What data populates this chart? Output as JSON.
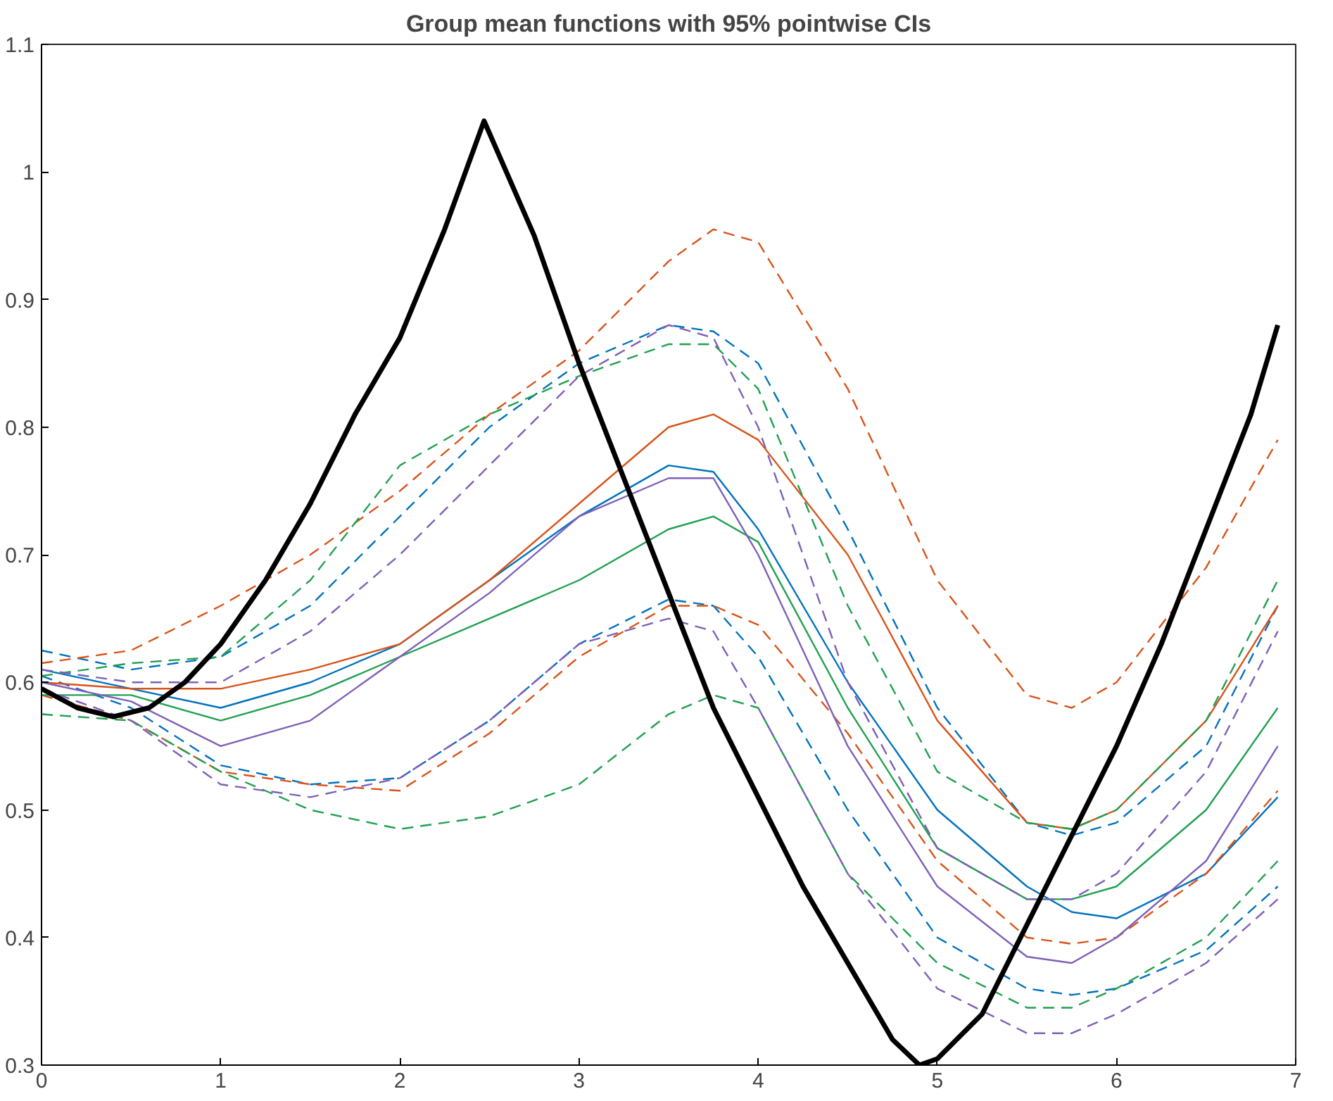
{
  "chart_data": {
    "type": "line",
    "title": "Group mean functions with 95% pointwise CIs",
    "x": [
      0,
      0.5,
      1,
      1.5,
      2,
      2.5,
      3,
      3.5,
      3.75,
      4,
      4.5,
      5,
      5.5,
      5.75,
      6,
      6.5,
      6.9
    ],
    "series": [
      {
        "color": "#0072bd",
        "line_style": "dashed",
        "values": [
          0.625,
          0.61,
          0.62,
          0.66,
          0.73,
          0.8,
          0.85,
          0.88,
          0.875,
          0.85,
          0.72,
          0.58,
          0.49,
          0.48,
          0.49,
          0.55,
          0.66
        ]
      },
      {
        "color": "#0072bd",
        "line_style": "solid",
        "values": [
          0.61,
          0.595,
          0.58,
          0.6,
          0.63,
          0.68,
          0.73,
          0.77,
          0.765,
          0.72,
          0.6,
          0.5,
          0.44,
          0.42,
          0.415,
          0.45,
          0.51
        ]
      },
      {
        "color": "#0072bd",
        "line_style": "dashed",
        "values": [
          0.605,
          0.58,
          0.535,
          0.52,
          0.525,
          0.57,
          0.63,
          0.665,
          0.66,
          0.62,
          0.5,
          0.4,
          0.36,
          0.355,
          0.36,
          0.39,
          0.44
        ]
      },
      {
        "color": "#d95319",
        "line_style": "dashed",
        "values": [
          0.615,
          0.625,
          0.66,
          0.7,
          0.75,
          0.81,
          0.86,
          0.93,
          0.955,
          0.945,
          0.83,
          0.68,
          0.59,
          0.58,
          0.6,
          0.69,
          0.79
        ]
      },
      {
        "color": "#d95319",
        "line_style": "solid",
        "values": [
          0.6,
          0.595,
          0.595,
          0.61,
          0.63,
          0.68,
          0.74,
          0.8,
          0.81,
          0.79,
          0.7,
          0.57,
          0.49,
          0.485,
          0.5,
          0.57,
          0.66
        ]
      },
      {
        "color": "#d95319",
        "line_style": "dashed",
        "values": [
          0.59,
          0.57,
          0.53,
          0.52,
          0.515,
          0.56,
          0.62,
          0.66,
          0.66,
          0.645,
          0.56,
          0.46,
          0.4,
          0.395,
          0.4,
          0.45,
          0.515
        ]
      },
      {
        "color": "#20a050",
        "line_style": "dashed",
        "values": [
          0.605,
          0.615,
          0.62,
          0.68,
          0.77,
          0.81,
          0.84,
          0.865,
          0.865,
          0.83,
          0.66,
          0.53,
          0.49,
          0.485,
          0.5,
          0.57,
          0.68
        ]
      },
      {
        "color": "#20a050",
        "line_style": "solid",
        "values": [
          0.59,
          0.59,
          0.57,
          0.59,
          0.62,
          0.65,
          0.68,
          0.72,
          0.73,
          0.71,
          0.58,
          0.47,
          0.43,
          0.43,
          0.44,
          0.5,
          0.58
        ]
      },
      {
        "color": "#20a050",
        "line_style": "dashed",
        "values": [
          0.575,
          0.57,
          0.53,
          0.5,
          0.485,
          0.495,
          0.52,
          0.575,
          0.59,
          0.58,
          0.45,
          0.38,
          0.345,
          0.345,
          0.36,
          0.4,
          0.46
        ]
      },
      {
        "color": "#7e5fb8",
        "line_style": "dashed",
        "values": [
          0.61,
          0.6,
          0.6,
          0.64,
          0.7,
          0.77,
          0.84,
          0.88,
          0.87,
          0.8,
          0.6,
          0.47,
          0.43,
          0.43,
          0.45,
          0.53,
          0.64
        ]
      },
      {
        "color": "#7e5fb8",
        "line_style": "solid",
        "values": [
          0.6,
          0.585,
          0.55,
          0.57,
          0.62,
          0.67,
          0.73,
          0.76,
          0.76,
          0.7,
          0.55,
          0.44,
          0.385,
          0.38,
          0.4,
          0.46,
          0.55
        ]
      },
      {
        "color": "#7e5fb8",
        "line_style": "dashed",
        "values": [
          0.595,
          0.57,
          0.52,
          0.51,
          0.525,
          0.57,
          0.63,
          0.65,
          0.64,
          0.58,
          0.45,
          0.36,
          0.325,
          0.325,
          0.34,
          0.38,
          0.43
        ]
      },
      {
        "color": "#000000",
        "line_style": "solid",
        "x": [
          0,
          0.2,
          0.4,
          0.6,
          0.8,
          1.0,
          1.25,
          1.5,
          1.75,
          2.0,
          2.25,
          2.47,
          2.75,
          3.0,
          3.25,
          3.5,
          3.75,
          4.0,
          4.25,
          4.5,
          4.75,
          4.9,
          5.0,
          5.25,
          5.5,
          5.75,
          6.0,
          6.25,
          6.5,
          6.75,
          6.9
        ],
        "values": [
          0.595,
          0.58,
          0.573,
          0.58,
          0.6,
          0.63,
          0.68,
          0.74,
          0.81,
          0.87,
          0.955,
          1.04,
          0.95,
          0.85,
          0.76,
          0.67,
          0.58,
          0.51,
          0.44,
          0.38,
          0.32,
          0.3,
          0.305,
          0.34,
          0.41,
          0.48,
          0.55,
          0.63,
          0.72,
          0.81,
          0.88
        ]
      }
    ],
    "xlim": [
      0,
      7
    ],
    "ylim": [
      0.3,
      1.1
    ],
    "xticks": [
      0,
      1,
      2,
      3,
      4,
      5,
      6,
      7
    ],
    "yticks": [
      0.3,
      0.4,
      0.5,
      0.6,
      0.7,
      0.8,
      0.9,
      1,
      1.1
    ],
    "grid": false
  }
}
